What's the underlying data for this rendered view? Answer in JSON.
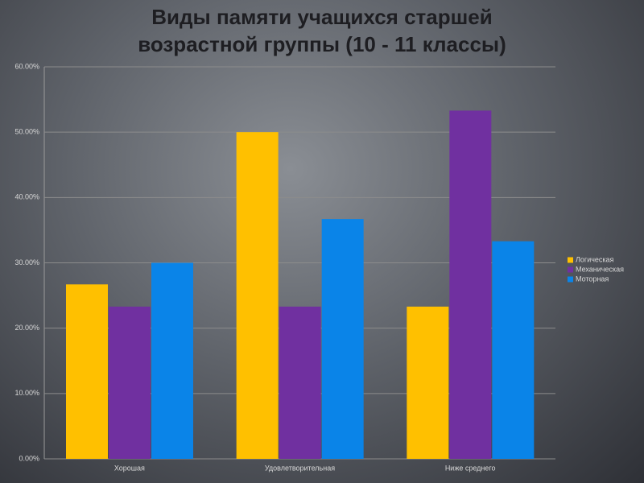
{
  "chart_data": {
    "type": "bar",
    "title": "Виды памяти учащихся старшей возрастной группы (10 - 11 классы)",
    "categories": [
      "Хорошая",
      "Удовлетворительная",
      "Ниже среднего"
    ],
    "series": [
      {
        "name": "Логическая",
        "color": "#ffc000",
        "values": [
          26.7,
          50,
          23.3
        ]
      },
      {
        "name": "Механическая",
        "color": "#7030a0",
        "values": [
          23.3,
          23.3,
          53.3
        ]
      },
      {
        "name": "Моторная",
        "color": "#0a84e8",
        "values": [
          30,
          36.7,
          33.3
        ]
      }
    ],
    "ylim": [
      0,
      60
    ],
    "yticks": [
      {
        "value": 0,
        "label": "0.00%"
      },
      {
        "value": 10,
        "label": "10.00%"
      },
      {
        "value": 20,
        "label": "20.00%"
      },
      {
        "value": 30,
        "label": "30.00%"
      },
      {
        "value": 40,
        "label": "40.00%"
      },
      {
        "value": 50,
        "label": "50.00%"
      },
      {
        "value": 60,
        "label": "60.00%"
      }
    ],
    "grid": true,
    "legend": "right"
  }
}
